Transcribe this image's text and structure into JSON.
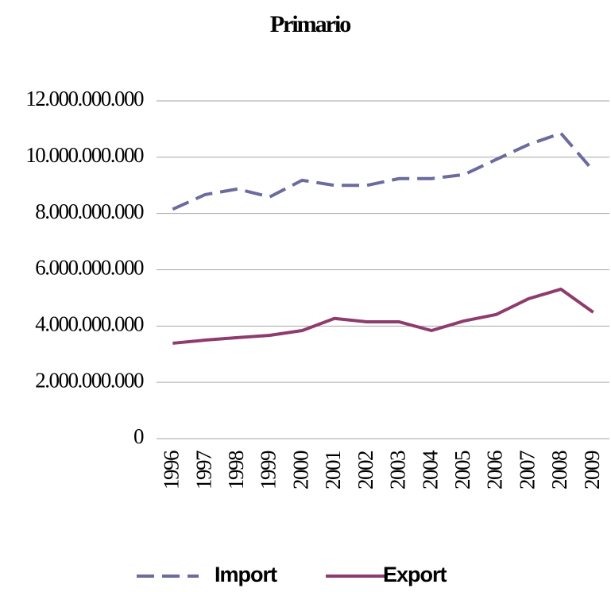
{
  "chart_data": {
    "type": "line",
    "title": "Primario",
    "categories": [
      "1996",
      "1997",
      "1998",
      "1999",
      "2000",
      "2001",
      "2002",
      "2003",
      "2004",
      "2005",
      "2006",
      "2007",
      "2008",
      "2009"
    ],
    "series": [
      {
        "name": "Import",
        "color": "#6b6b9e",
        "dash": true,
        "values": [
          8150000000,
          8670000000,
          8870000000,
          8590000000,
          9180000000,
          9000000000,
          9000000000,
          9240000000,
          9240000000,
          9380000000,
          9920000000,
          10450000000,
          10850000000,
          9520000000
        ]
      },
      {
        "name": "Export",
        "color": "#8e3b6e",
        "dash": false,
        "values": [
          3390000000,
          3500000000,
          3590000000,
          3670000000,
          3840000000,
          4270000000,
          4150000000,
          4150000000,
          3840000000,
          4180000000,
          4410000000,
          4970000000,
          5310000000,
          4490000000
        ]
      }
    ],
    "ylim": [
      0,
      12000000000
    ],
    "yticks": [
      0,
      {
        "value": 2000000000,
        "label": "2.000.000.000"
      },
      {
        "value": 4000000000,
        "label": "4.000.000.000"
      },
      {
        "value": 6000000000,
        "label": "6.000.000.000"
      },
      {
        "value": 8000000000,
        "label": "8.000.000.000"
      },
      {
        "value": 10000000000,
        "label": "10.000.000.000"
      },
      {
        "value": 12000000000,
        "label": "12.000.000.000"
      }
    ],
    "grid": true,
    "legend": "bottom"
  }
}
